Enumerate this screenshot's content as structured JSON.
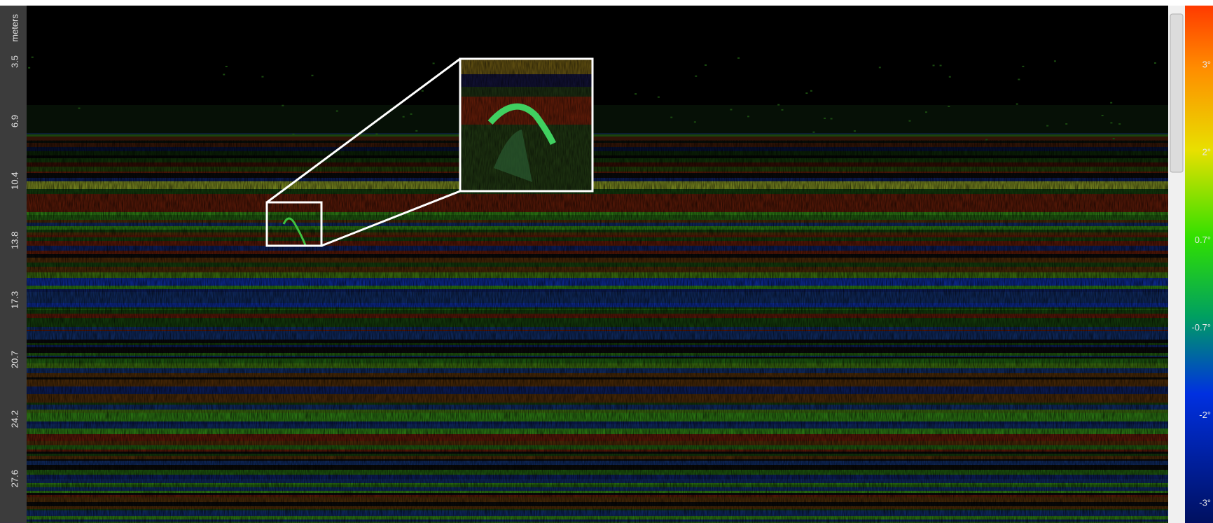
{
  "depth_axis": {
    "label": "meters",
    "ticks": [
      "3.5",
      "6.9",
      "10.4",
      "13.8",
      "17.3",
      "20.7",
      "24.2",
      "27.6"
    ]
  },
  "color_scale": {
    "labels": [
      "3°",
      "2°",
      "0.7°",
      "-0.7°",
      "-2°",
      "-3°"
    ]
  }
}
